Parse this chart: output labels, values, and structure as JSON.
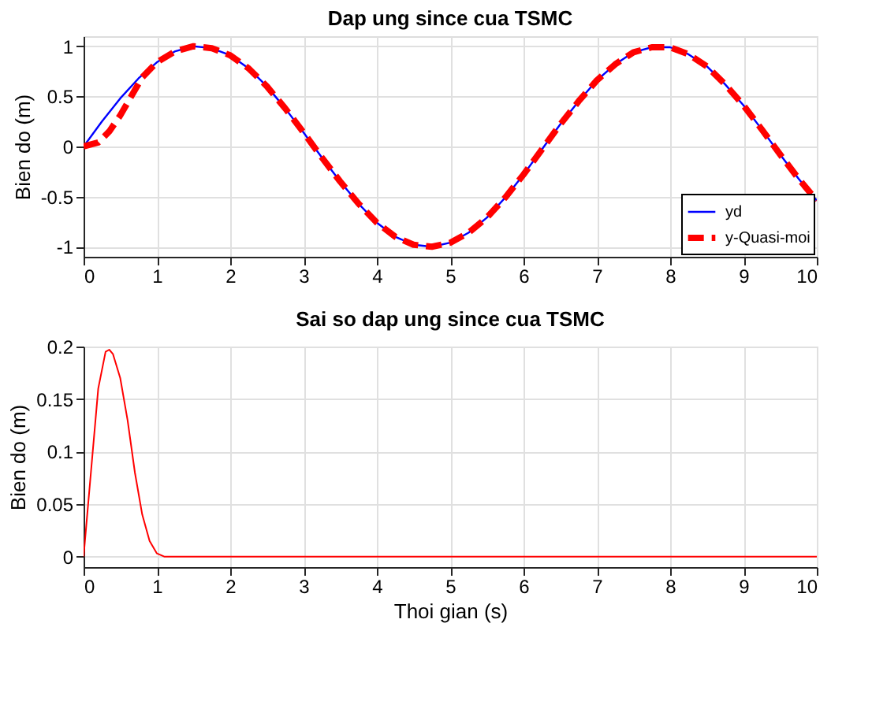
{
  "chart_data": [
    {
      "type": "line",
      "title": "Dap ung since cua TSMC",
      "ylabel": "Bien do (m)",
      "xlim": [
        0,
        10
      ],
      "xticks": [
        0,
        1,
        2,
        3,
        4,
        5,
        6,
        7,
        8,
        9,
        10
      ],
      "ylim": [
        -1.1,
        1.1
      ],
      "yticks": [
        -1,
        -0.5,
        0,
        0.5,
        1
      ],
      "grid": true,
      "legend": "bottom right",
      "series": [
        {
          "name": "yd",
          "color": "#0000ff",
          "line_style": "solid",
          "x": [
            0,
            0.25,
            0.5,
            0.75,
            1,
            1.25,
            1.5,
            1.75,
            2,
            2.25,
            2.5,
            2.75,
            3,
            3.25,
            3.5,
            3.75,
            4,
            4.25,
            4.5,
            4.75,
            5,
            5.25,
            5.5,
            5.75,
            6,
            6.25,
            6.5,
            6.75,
            7,
            7.25,
            7.5,
            7.75,
            8,
            8.25,
            8.5,
            8.75,
            9,
            9.25,
            9.5,
            9.75,
            10
          ],
          "values": [
            0,
            0.25,
            0.48,
            0.68,
            0.84,
            0.95,
            1.0,
            0.98,
            0.91,
            0.78,
            0.6,
            0.38,
            0.14,
            -0.11,
            -0.35,
            -0.57,
            -0.76,
            -0.9,
            -0.98,
            -1.0,
            -0.96,
            -0.86,
            -0.71,
            -0.51,
            -0.28,
            -0.03,
            0.22,
            0.45,
            0.66,
            0.82,
            0.94,
            0.99,
            0.99,
            0.92,
            0.8,
            0.62,
            0.41,
            0.17,
            -0.08,
            -0.32,
            -0.54
          ]
        },
        {
          "name": "y-Quasi-moi",
          "color": "#ff0000",
          "line_style": "dashed",
          "x": [
            0,
            0.1,
            0.2,
            0.35,
            0.5,
            0.65,
            0.8,
            1,
            1.25,
            1.5,
            1.75,
            2,
            2.25,
            2.5,
            2.75,
            3,
            3.25,
            3.5,
            3.75,
            4,
            4.25,
            4.5,
            4.75,
            5,
            5.25,
            5.5,
            5.75,
            6,
            6.25,
            6.5,
            6.75,
            7,
            7.25,
            7.5,
            7.75,
            8,
            8.25,
            8.5,
            8.75,
            9,
            9.25,
            9.5,
            9.75,
            10
          ],
          "values": [
            0,
            0.02,
            0.04,
            0.15,
            0.31,
            0.5,
            0.69,
            0.84,
            0.95,
            1.0,
            0.98,
            0.91,
            0.78,
            0.6,
            0.38,
            0.14,
            -0.11,
            -0.35,
            -0.57,
            -0.76,
            -0.9,
            -0.98,
            -1.0,
            -0.96,
            -0.86,
            -0.71,
            -0.51,
            -0.28,
            -0.03,
            0.22,
            0.45,
            0.66,
            0.82,
            0.94,
            0.99,
            0.99,
            0.92,
            0.8,
            0.62,
            0.41,
            0.17,
            -0.08,
            -0.32,
            -0.54
          ]
        }
      ]
    },
    {
      "type": "line",
      "title": "Sai so dap ung since cua TSMC",
      "xlabel": "Thoi gian (s)",
      "ylabel": "Bien do (m)",
      "xlim": [
        0,
        10
      ],
      "xticks": [
        0,
        1,
        2,
        3,
        4,
        5,
        6,
        7,
        8,
        9,
        10
      ],
      "ylim": [
        -0.01,
        0.2
      ],
      "yticks": [
        0,
        0.05,
        0.1,
        0.15,
        0.2
      ],
      "grid": true,
      "series": [
        {
          "color": "#ff0000",
          "line_style": "solid",
          "x": [
            0,
            0.1,
            0.2,
            0.3,
            0.35,
            0.4,
            0.5,
            0.6,
            0.7,
            0.8,
            0.9,
            1,
            1.1,
            2,
            4,
            6,
            8,
            10
          ],
          "values": [
            0,
            0.08,
            0.16,
            0.195,
            0.197,
            0.193,
            0.17,
            0.13,
            0.08,
            0.04,
            0.015,
            0.003,
            0,
            0,
            0,
            0,
            0,
            0
          ]
        }
      ]
    }
  ]
}
